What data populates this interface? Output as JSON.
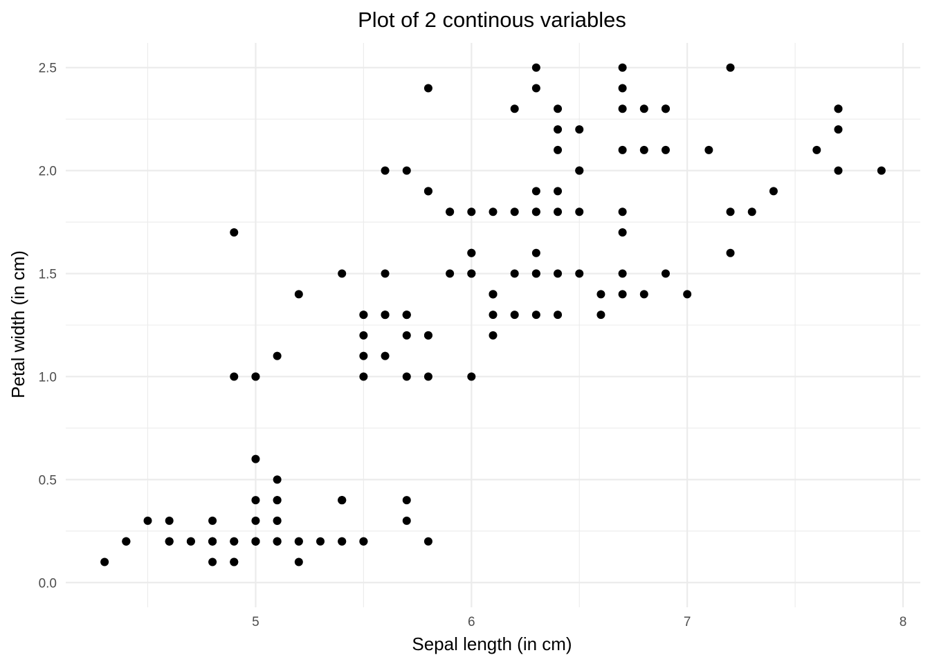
{
  "chart_data": {
    "type": "scatter",
    "title": "Plot of 2 continous variables",
    "xlabel": "Sepal length (in cm)",
    "ylabel": "Petal width (in cm)",
    "xlim": [
      4.12,
      8.08
    ],
    "ylim": [
      -0.12,
      2.62
    ],
    "x_ticks": [
      "5",
      "6",
      "7",
      "8"
    ],
    "y_ticks": [
      "0.0",
      "0.5",
      "1.0",
      "1.5",
      "2.0",
      "2.5"
    ],
    "grid": true,
    "legend": "none",
    "point_color": "#000000",
    "points": [
      [
        5.1,
        0.2
      ],
      [
        4.9,
        0.2
      ],
      [
        4.7,
        0.2
      ],
      [
        4.6,
        0.2
      ],
      [
        5.0,
        0.2
      ],
      [
        5.4,
        0.4
      ],
      [
        4.6,
        0.3
      ],
      [
        5.0,
        0.2
      ],
      [
        4.4,
        0.2
      ],
      [
        4.9,
        0.1
      ],
      [
        5.4,
        0.2
      ],
      [
        4.8,
        0.2
      ],
      [
        4.8,
        0.1
      ],
      [
        4.3,
        0.1
      ],
      [
        5.8,
        0.2
      ],
      [
        5.7,
        0.4
      ],
      [
        5.4,
        0.4
      ],
      [
        5.1,
        0.3
      ],
      [
        5.7,
        0.3
      ],
      [
        5.1,
        0.3
      ],
      [
        5.4,
        0.2
      ],
      [
        5.1,
        0.4
      ],
      [
        4.6,
        0.2
      ],
      [
        5.1,
        0.5
      ],
      [
        4.8,
        0.2
      ],
      [
        5.0,
        0.2
      ],
      [
        5.0,
        0.4
      ],
      [
        5.2,
        0.2
      ],
      [
        5.2,
        0.2
      ],
      [
        4.7,
        0.2
      ],
      [
        4.8,
        0.2
      ],
      [
        5.4,
        0.4
      ],
      [
        5.2,
        0.1
      ],
      [
        5.5,
        0.2
      ],
      [
        4.9,
        0.2
      ],
      [
        5.0,
        0.2
      ],
      [
        5.5,
        0.2
      ],
      [
        4.9,
        0.1
      ],
      [
        4.4,
        0.2
      ],
      [
        5.1,
        0.2
      ],
      [
        5.0,
        0.3
      ],
      [
        4.5,
        0.3
      ],
      [
        4.4,
        0.2
      ],
      [
        5.0,
        0.6
      ],
      [
        5.1,
        0.4
      ],
      [
        4.8,
        0.3
      ],
      [
        5.1,
        0.2
      ],
      [
        4.6,
        0.2
      ],
      [
        5.3,
        0.2
      ],
      [
        5.0,
        0.2
      ],
      [
        7.0,
        1.4
      ],
      [
        6.4,
        1.5
      ],
      [
        6.9,
        1.5
      ],
      [
        5.5,
        1.3
      ],
      [
        6.5,
        1.5
      ],
      [
        5.7,
        1.3
      ],
      [
        6.3,
        1.6
      ],
      [
        4.9,
        1.0
      ],
      [
        6.6,
        1.3
      ],
      [
        5.2,
        1.4
      ],
      [
        5.0,
        1.0
      ],
      [
        5.9,
        1.5
      ],
      [
        6.0,
        1.0
      ],
      [
        6.1,
        1.4
      ],
      [
        5.6,
        1.3
      ],
      [
        6.7,
        1.4
      ],
      [
        5.6,
        1.5
      ],
      [
        5.8,
        1.0
      ],
      [
        6.2,
        1.5
      ],
      [
        5.6,
        1.1
      ],
      [
        5.9,
        1.8
      ],
      [
        6.1,
        1.3
      ],
      [
        6.3,
        1.5
      ],
      [
        6.1,
        1.2
      ],
      [
        6.4,
        1.3
      ],
      [
        6.6,
        1.4
      ],
      [
        6.8,
        1.4
      ],
      [
        6.7,
        1.7
      ],
      [
        6.0,
        1.5
      ],
      [
        5.7,
        1.0
      ],
      [
        5.5,
        1.1
      ],
      [
        5.5,
        1.0
      ],
      [
        5.8,
        1.2
      ],
      [
        6.0,
        1.6
      ],
      [
        5.4,
        1.5
      ],
      [
        6.0,
        1.6
      ],
      [
        6.7,
        1.5
      ],
      [
        6.3,
        1.3
      ],
      [
        5.6,
        1.3
      ],
      [
        5.5,
        1.3
      ],
      [
        5.5,
        1.2
      ],
      [
        6.1,
        1.4
      ],
      [
        5.8,
        1.2
      ],
      [
        5.0,
        1.0
      ],
      [
        5.6,
        1.3
      ],
      [
        5.7,
        1.2
      ],
      [
        5.7,
        1.3
      ],
      [
        6.2,
        1.3
      ],
      [
        5.1,
        1.1
      ],
      [
        5.7,
        1.3
      ],
      [
        6.3,
        2.5
      ],
      [
        5.8,
        1.9
      ],
      [
        7.1,
        2.1
      ],
      [
        6.3,
        1.8
      ],
      [
        6.5,
        2.2
      ],
      [
        7.6,
        2.1
      ],
      [
        4.9,
        1.7
      ],
      [
        7.3,
        1.8
      ],
      [
        6.7,
        1.8
      ],
      [
        7.2,
        2.5
      ],
      [
        6.5,
        2.0
      ],
      [
        6.4,
        1.9
      ],
      [
        6.8,
        2.1
      ],
      [
        5.7,
        2.0
      ],
      [
        5.8,
        2.4
      ],
      [
        6.4,
        2.3
      ],
      [
        6.5,
        1.8
      ],
      [
        7.7,
        2.2
      ],
      [
        7.7,
        2.3
      ],
      [
        6.0,
        1.5
      ],
      [
        6.9,
        2.3
      ],
      [
        5.6,
        2.0
      ],
      [
        7.7,
        2.0
      ],
      [
        6.3,
        1.8
      ],
      [
        6.7,
        2.1
      ],
      [
        7.2,
        1.8
      ],
      [
        6.2,
        1.8
      ],
      [
        6.1,
        1.8
      ],
      [
        6.4,
        2.1
      ],
      [
        7.2,
        1.6
      ],
      [
        7.4,
        1.9
      ],
      [
        7.9,
        2.0
      ],
      [
        6.4,
        2.2
      ],
      [
        6.3,
        1.5
      ],
      [
        6.1,
        1.4
      ],
      [
        7.7,
        2.3
      ],
      [
        6.3,
        2.4
      ],
      [
        6.4,
        1.8
      ],
      [
        6.0,
        1.8
      ],
      [
        6.9,
        2.1
      ],
      [
        6.7,
        2.4
      ],
      [
        6.9,
        2.3
      ],
      [
        5.8,
        1.9
      ],
      [
        6.8,
        2.3
      ],
      [
        6.7,
        2.5
      ],
      [
        6.7,
        2.3
      ],
      [
        6.3,
        1.9
      ],
      [
        6.5,
        2.0
      ],
      [
        6.2,
        2.3
      ],
      [
        5.9,
        1.8
      ]
    ]
  }
}
